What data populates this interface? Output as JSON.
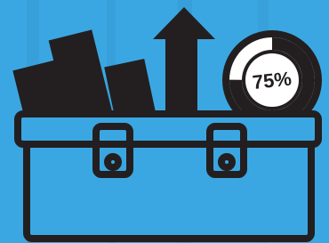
{
  "badge": {
    "value": 75,
    "label": "75%"
  }
}
